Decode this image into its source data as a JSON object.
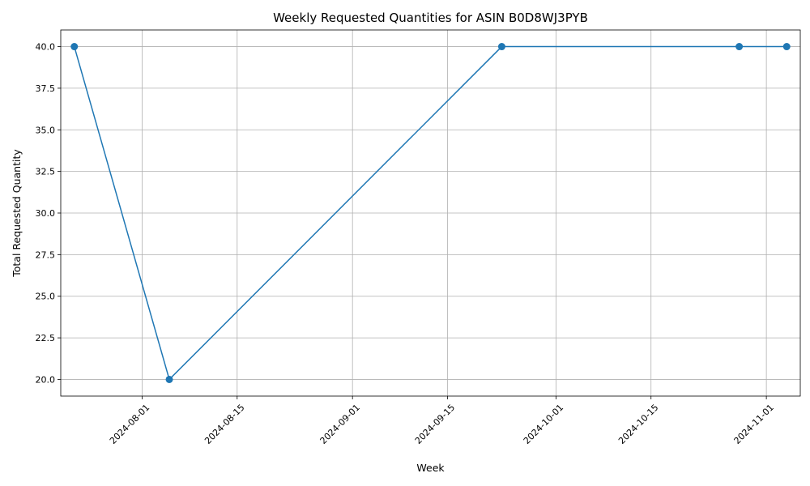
{
  "chart_data": {
    "type": "line",
    "title": "Weekly Requested Quantities for ASIN B0D8WJ3PYB",
    "xlabel": "Week",
    "ylabel": "Total Requested Quantity",
    "grid": true,
    "x_is_date": true,
    "xlim": [
      "2024-07-20",
      "2024-11-06"
    ],
    "ylim": [
      19,
      41
    ],
    "x_ticks": [
      "2024-08-01",
      "2024-08-15",
      "2024-09-01",
      "2024-09-15",
      "2024-10-01",
      "2024-10-15",
      "2024-11-01"
    ],
    "y_ticks": [
      "20.0",
      "22.5",
      "25.0",
      "27.5",
      "30.0",
      "32.5",
      "35.0",
      "37.5",
      "40.0"
    ],
    "series": [
      {
        "name": "Total Requested Quantity",
        "color": "#1f77b4",
        "x": [
          "2024-07-22",
          "2024-08-05",
          "2024-09-23",
          "2024-10-28",
          "2024-11-04"
        ],
        "values": [
          40,
          20,
          40,
          40,
          40
        ]
      }
    ]
  }
}
